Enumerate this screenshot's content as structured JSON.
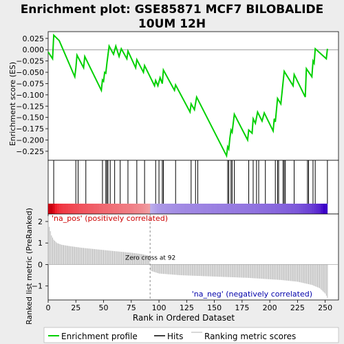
{
  "title_line1": "Enrichment plot: GSE85871 MCF7 BILOBALIDE",
  "title_line2": "10UM 12H",
  "colors": {
    "es_line": "#00d000",
    "hits": "#000000",
    "metric": "#b0b0b0",
    "pos_label": "#cc0000",
    "neg_label": "#0000aa",
    "background": "#ededed",
    "panel": "#ffffff"
  },
  "chart_data": [
    {
      "type": "line",
      "name": "enrichment-profile",
      "ylabel": "Enrichment score (ES)",
      "xlim": [
        0,
        262
      ],
      "ylim": [
        -0.245,
        0.04
      ],
      "yticks": [
        0.025,
        0.0,
        -0.025,
        -0.05,
        -0.075,
        -0.1,
        -0.125,
        -0.15,
        -0.175,
        -0.2,
        -0.225
      ],
      "ytick_labels": [
        "0.025",
        "0.000",
        "−0.025",
        "−0.050",
        "−0.075",
        "−0.100",
        "−0.125",
        "−0.150",
        "−0.175",
        "−0.200",
        "−0.225"
      ],
      "points": [
        [
          0,
          -0.005
        ],
        [
          4,
          -0.02
        ],
        [
          5,
          0.032
        ],
        [
          10,
          0.02
        ],
        [
          24,
          -0.06
        ],
        [
          25,
          -0.04
        ],
        [
          26,
          -0.012
        ],
        [
          32,
          -0.04
        ],
        [
          33,
          -0.015
        ],
        [
          48,
          -0.09
        ],
        [
          49,
          -0.067
        ],
        [
          50,
          -0.07
        ],
        [
          51,
          -0.05
        ],
        [
          52,
          -0.052
        ],
        [
          53,
          -0.03
        ],
        [
          55,
          0.008
        ],
        [
          59,
          -0.01
        ],
        [
          61,
          0.008
        ],
        [
          64,
          -0.015
        ],
        [
          66,
          0.002
        ],
        [
          71,
          -0.02
        ],
        [
          72,
          -0.003
        ],
        [
          79,
          -0.04
        ],
        [
          80,
          -0.022
        ],
        [
          86,
          -0.05
        ],
        [
          87,
          -0.035
        ],
        [
          96,
          -0.08
        ],
        [
          97,
          -0.068
        ],
        [
          99,
          -0.08
        ],
        [
          101,
          -0.062
        ],
        [
          103,
          -0.075
        ],
        [
          104,
          -0.045
        ],
        [
          114,
          -0.09
        ],
        [
          115,
          -0.078
        ],
        [
          128,
          -0.138
        ],
        [
          129,
          -0.12
        ],
        [
          132,
          -0.133
        ],
        [
          134,
          -0.105
        ],
        [
          161,
          -0.235
        ],
        [
          162,
          -0.215
        ],
        [
          163,
          -0.22
        ],
        [
          164,
          -0.195
        ],
        [
          165,
          -0.178
        ],
        [
          166,
          -0.183
        ],
        [
          168,
          -0.143
        ],
        [
          180,
          -0.2
        ],
        [
          181,
          -0.178
        ],
        [
          184,
          -0.185
        ],
        [
          185,
          -0.153
        ],
        [
          187,
          -0.163
        ],
        [
          189,
          -0.138
        ],
        [
          193,
          -0.158
        ],
        [
          195,
          -0.14
        ],
        [
          203,
          -0.18
        ],
        [
          204,
          -0.153
        ],
        [
          205,
          -0.16
        ],
        [
          207,
          -0.108
        ],
        [
          210,
          -0.12
        ],
        [
          213,
          -0.048
        ],
        [
          221,
          -0.08
        ],
        [
          222,
          -0.055
        ],
        [
          232,
          -0.105
        ],
        [
          233,
          -0.042
        ],
        [
          238,
          -0.06
        ],
        [
          239,
          -0.025
        ],
        [
          240,
          -0.03
        ],
        [
          241,
          0.002
        ],
        [
          251,
          -0.02
        ],
        [
          252,
          0.002
        ]
      ]
    },
    {
      "type": "hits",
      "name": "hits",
      "x": [
        5,
        25,
        27,
        34,
        49,
        52,
        53,
        54,
        56,
        60,
        65,
        72,
        80,
        87,
        97,
        100,
        103,
        104,
        115,
        129,
        133,
        135,
        162,
        163,
        165,
        166,
        168,
        181,
        185,
        188,
        190,
        196,
        205,
        207,
        208,
        212,
        213,
        214,
        222,
        234,
        235,
        239,
        241,
        252
      ]
    },
    {
      "type": "area",
      "name": "ranking-metric",
      "ylabel": "Ranked list metric (PreRanked)",
      "xlabel": "Rank in Ordered Dataset",
      "xlim": [
        0,
        262
      ],
      "ylim": [
        -1.65,
        2.35
      ],
      "xticks": [
        0,
        25,
        50,
        75,
        100,
        125,
        150,
        175,
        200,
        225,
        250
      ],
      "yticks": [
        2,
        1,
        0,
        -1
      ],
      "ytick_labels": [
        "2",
        "1",
        "0",
        "−1"
      ],
      "points": [
        [
          0,
          2.25
        ],
        [
          1,
          1.75
        ],
        [
          2,
          1.55
        ],
        [
          3,
          1.35
        ],
        [
          5,
          1.15
        ],
        [
          8,
          1.0
        ],
        [
          12,
          0.92
        ],
        [
          20,
          0.85
        ],
        [
          30,
          0.78
        ],
        [
          45,
          0.7
        ],
        [
          60,
          0.62
        ],
        [
          75,
          0.55
        ],
        [
          85,
          0.48
        ],
        [
          91,
          0.4
        ],
        [
          92,
          0.0
        ],
        [
          93,
          -0.3
        ],
        [
          100,
          -0.42
        ],
        [
          120,
          -0.5
        ],
        [
          150,
          -0.56
        ],
        [
          180,
          -0.62
        ],
        [
          210,
          -0.72
        ],
        [
          225,
          -0.8
        ],
        [
          238,
          -0.95
        ],
        [
          245,
          -1.1
        ],
        [
          250,
          -1.35
        ],
        [
          252,
          -1.55
        ]
      ],
      "zero_cross": 92,
      "zero_cross_label": "Zero cross at 92",
      "pos_label": "'na_pos' (positively correlated)",
      "neg_label": "'na_neg' (negatively correlated)"
    }
  ],
  "legend": {
    "items": [
      {
        "label": "Enrichment profile",
        "color": "#00d000"
      },
      {
        "label": "Hits",
        "color": "#000000"
      },
      {
        "label": "Ranking metric scores",
        "color": "#b0b0b0"
      }
    ]
  }
}
